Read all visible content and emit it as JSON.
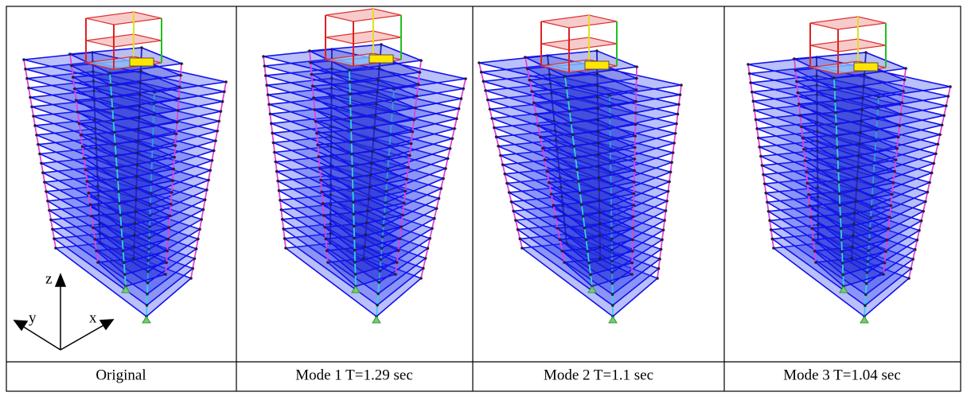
{
  "figure": {
    "panels": [
      {
        "caption": "Original"
      },
      {
        "caption": "Mode 1 T=1.29 sec"
      },
      {
        "caption": "Mode 2 T=1.1 sec"
      },
      {
        "caption": "Mode 3 T=1.04 sec"
      }
    ],
    "axes": {
      "z": "z",
      "y": "y",
      "x": "x"
    }
  }
}
